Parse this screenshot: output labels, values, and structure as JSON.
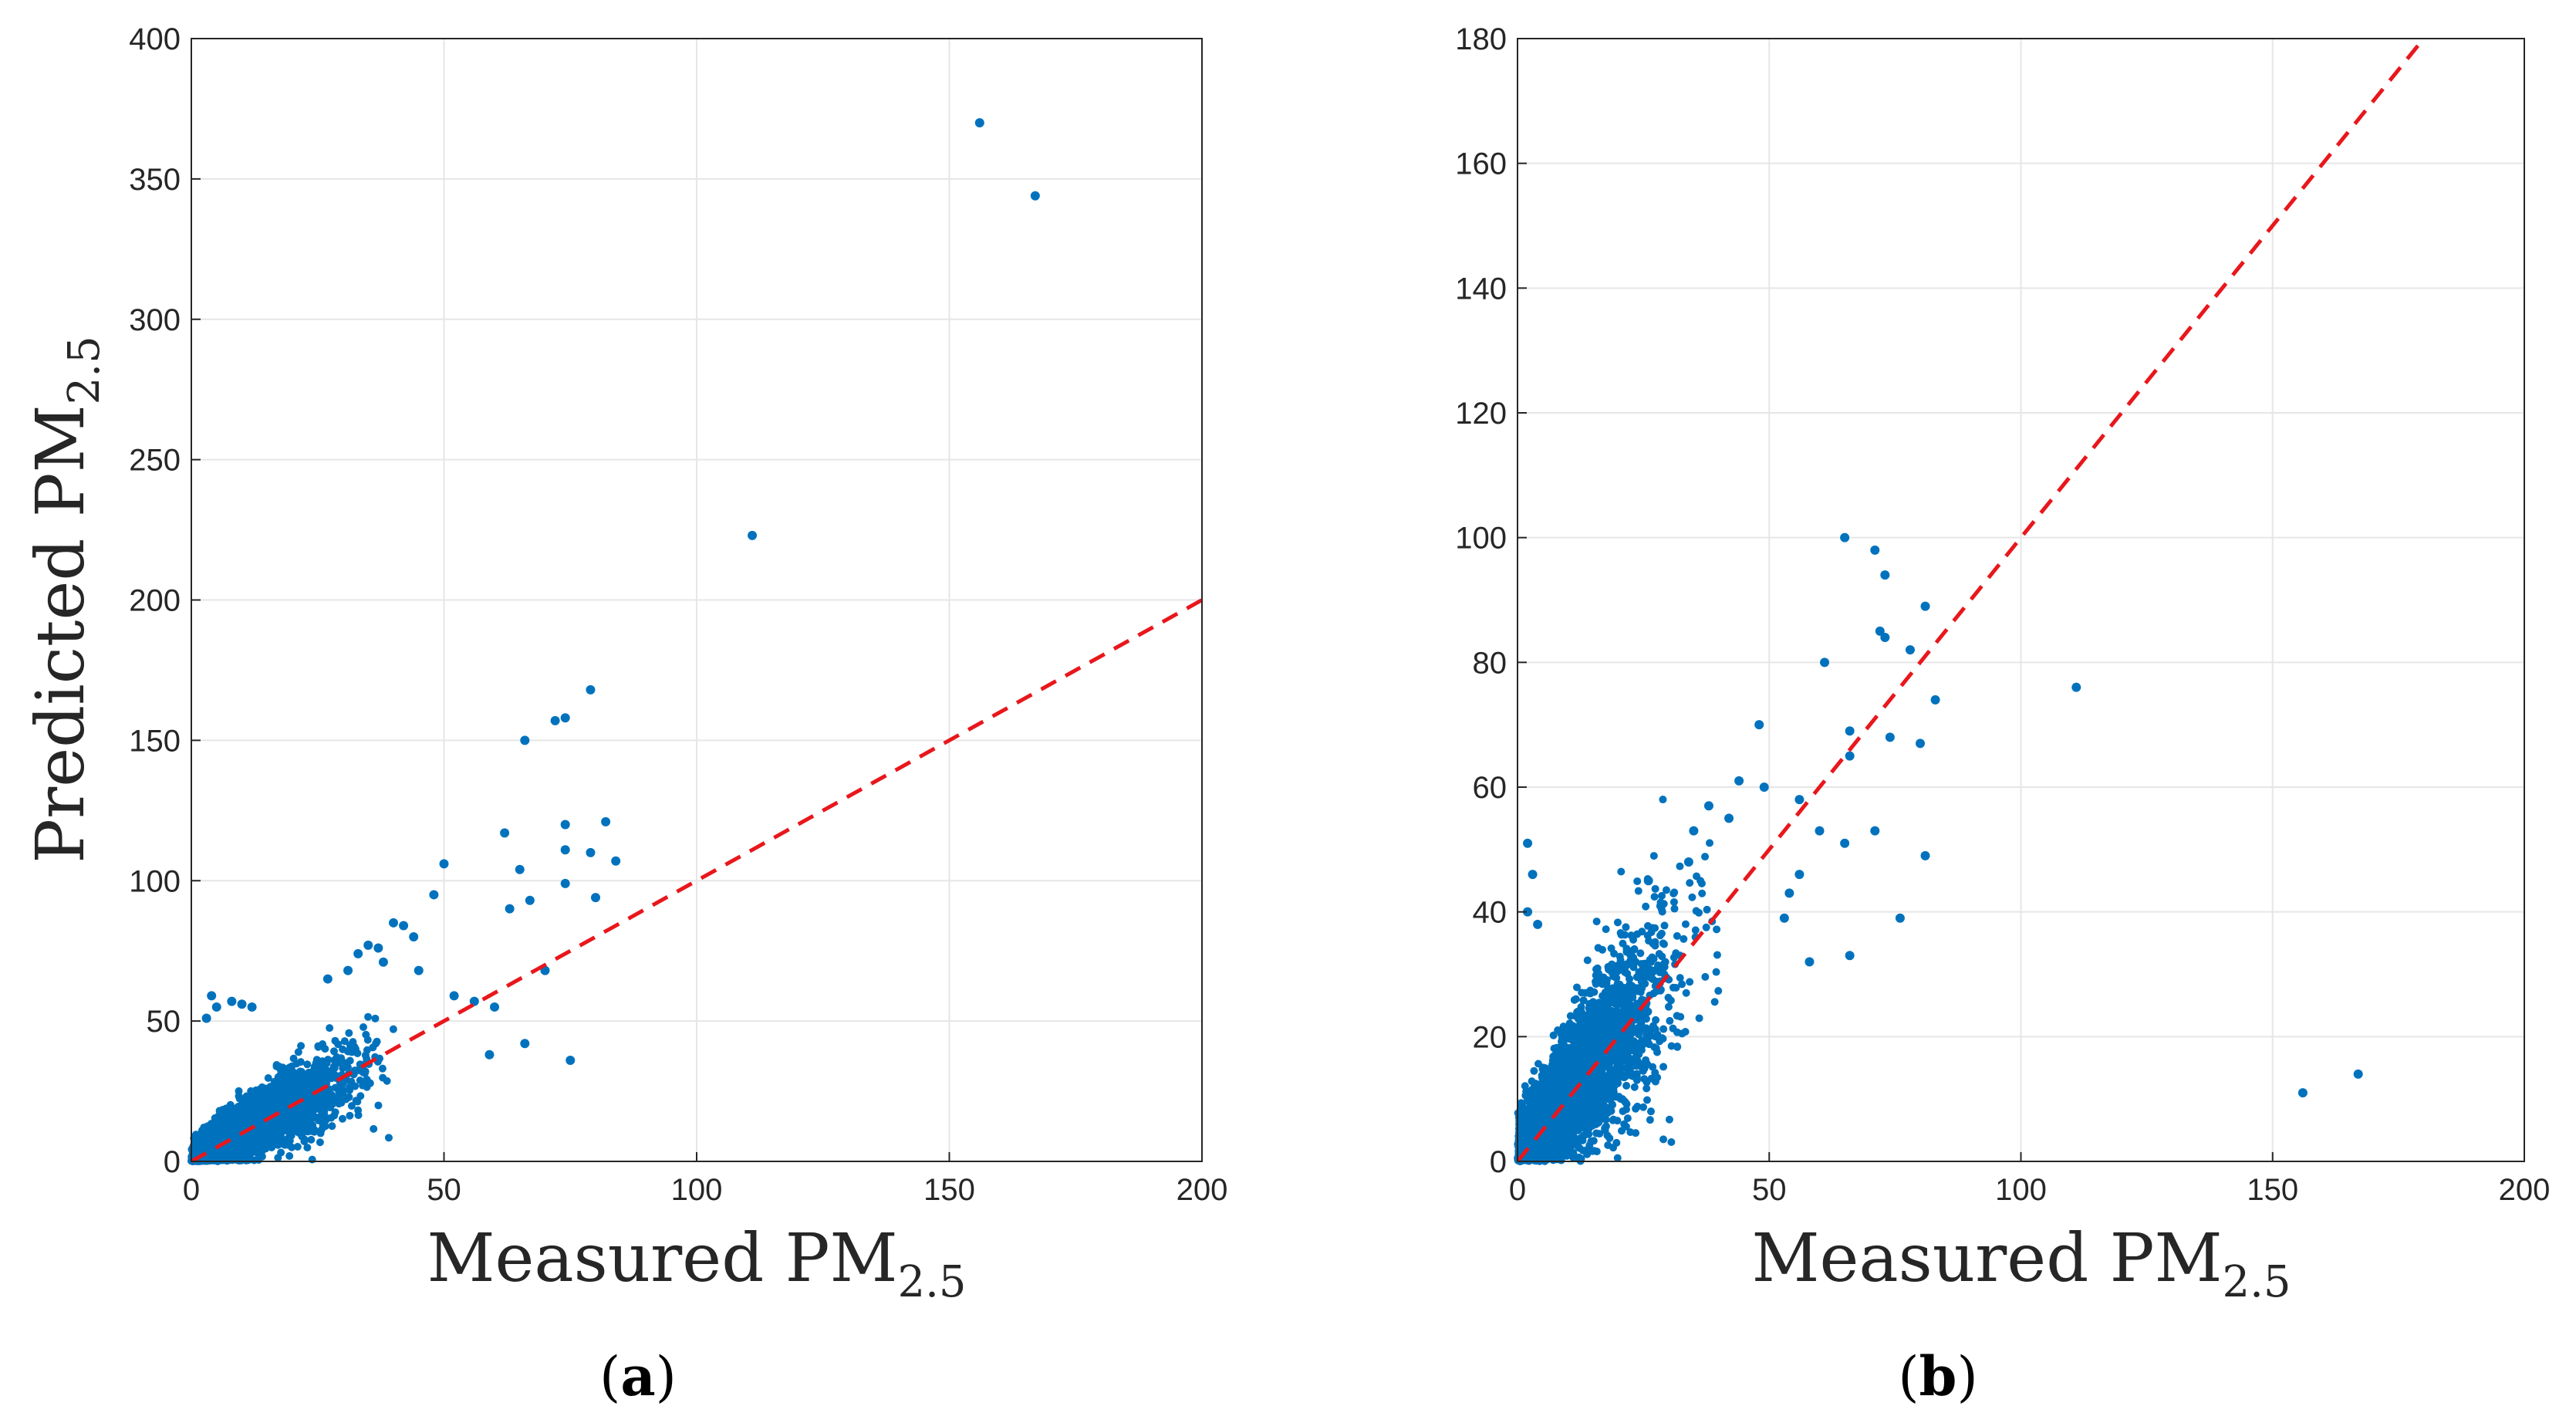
{
  "colors": {
    "points": "#0072BD",
    "ref_line": "#E8171C",
    "grid": "#E6E6E6",
    "axis": "#262626"
  },
  "chart_data": [
    {
      "type": "scatter",
      "panel": "a",
      "panel_label": "a",
      "title": "",
      "xlabel": "Measured PM",
      "xlabel_sub": "2.5",
      "ylabel": "Predicted PM",
      "ylabel_sub": "2.5",
      "xlim": [
        0,
        200
      ],
      "ylim": [
        0,
        400
      ],
      "xticks": [
        0,
        50,
        100,
        150,
        200
      ],
      "yticks": [
        0,
        50,
        100,
        150,
        200,
        250,
        300,
        350,
        400
      ],
      "grid": true,
      "reference_line": {
        "style": "dashed",
        "from": [
          0,
          0
        ],
        "to": [
          200,
          200
        ]
      },
      "cluster": {
        "approx_points": 4000,
        "x_range": [
          0,
          40
        ],
        "relation": "y ≈ x",
        "note": "dense cloud near origin"
      },
      "points": [
        [
          156,
          370
        ],
        [
          167,
          344
        ],
        [
          111,
          223
        ],
        [
          79,
          168
        ],
        [
          74,
          158
        ],
        [
          72,
          157
        ],
        [
          66,
          150
        ],
        [
          82,
          121
        ],
        [
          74,
          120
        ],
        [
          62,
          117
        ],
        [
          74,
          111
        ],
        [
          79,
          110
        ],
        [
          84,
          107
        ],
        [
          50,
          106
        ],
        [
          74,
          99
        ],
        [
          65,
          104
        ],
        [
          67,
          93
        ],
        [
          63,
          90
        ],
        [
          80,
          94
        ],
        [
          48,
          95
        ],
        [
          42,
          84
        ],
        [
          40,
          85
        ],
        [
          44,
          80
        ],
        [
          70,
          68
        ],
        [
          66,
          42
        ],
        [
          75,
          36
        ],
        [
          59,
          38
        ],
        [
          56,
          57
        ],
        [
          60,
          55
        ],
        [
          52,
          59
        ],
        [
          45,
          68
        ],
        [
          35,
          77
        ],
        [
          37,
          76
        ],
        [
          33,
          74
        ],
        [
          38,
          71
        ],
        [
          31,
          68
        ],
        [
          27,
          65
        ],
        [
          4,
          59
        ],
        [
          5,
          55
        ],
        [
          3,
          51
        ],
        [
          8,
          57
        ],
        [
          10,
          56
        ],
        [
          12,
          55
        ]
      ]
    },
    {
      "type": "scatter",
      "panel": "b",
      "panel_label": "b",
      "title": "",
      "xlabel": "Measured PM",
      "xlabel_sub": "2.5",
      "ylabel": "",
      "xlim": [
        0,
        200
      ],
      "ylim": [
        0,
        180
      ],
      "xticks": [
        0,
        50,
        100,
        150,
        200
      ],
      "yticks": [
        0,
        20,
        40,
        60,
        80,
        100,
        120,
        140,
        160,
        180
      ],
      "grid": true,
      "reference_line": {
        "style": "dashed",
        "from": [
          0,
          0
        ],
        "to": [
          180,
          180
        ]
      },
      "cluster": {
        "approx_points": 4000,
        "x_range": [
          0,
          40
        ],
        "relation": "y ≈ x",
        "note": "dense cloud near origin"
      },
      "points": [
        [
          65,
          100
        ],
        [
          71,
          98
        ],
        [
          73,
          94
        ],
        [
          81,
          89
        ],
        [
          72,
          85
        ],
        [
          73,
          84
        ],
        [
          78,
          82
        ],
        [
          61,
          80
        ],
        [
          83,
          74
        ],
        [
          111,
          76
        ],
        [
          66,
          69
        ],
        [
          74,
          68
        ],
        [
          80,
          67
        ],
        [
          66,
          65
        ],
        [
          48,
          70
        ],
        [
          44,
          61
        ],
        [
          49,
          60
        ],
        [
          56,
          58
        ],
        [
          60,
          53
        ],
        [
          71,
          53
        ],
        [
          65,
          51
        ],
        [
          81,
          49
        ],
        [
          56,
          46
        ],
        [
          54,
          43
        ],
        [
          38,
          57
        ],
        [
          42,
          55
        ],
        [
          35,
          53
        ],
        [
          53,
          39
        ],
        [
          76,
          39
        ],
        [
          66,
          33
        ],
        [
          58,
          32
        ],
        [
          156,
          11
        ],
        [
          167,
          14
        ],
        [
          2,
          51
        ],
        [
          3,
          46
        ],
        [
          2,
          40
        ],
        [
          4,
          38
        ],
        [
          26,
          45
        ],
        [
          34,
          48
        ]
      ]
    }
  ]
}
